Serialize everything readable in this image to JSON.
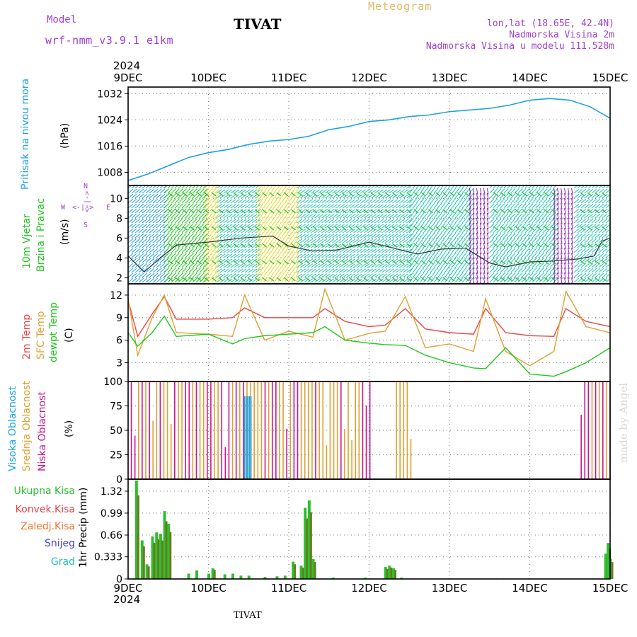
{
  "header": {
    "model_label": "Model",
    "model_name": "wrf-nmm_v3.9.1  e1km",
    "station": "TIVAT",
    "meteogram": "Meteogram",
    "lonlat": "lon,lat (18.65E, 42.4N)",
    "elevation": "Nadmorska Visina 2m",
    "model_elevation": "Nadmorska Visina u modelu 111.528m"
  },
  "footer": {
    "station": "TIVAT",
    "watermark": "made by Angel"
  },
  "time_axis": {
    "year": "2024",
    "labels": [
      "9DEC",
      "10DEC",
      "11DEC",
      "12DEC",
      "13DEC",
      "14DEC",
      "15DEC"
    ]
  },
  "colors": {
    "pressure": "#1ea0e6",
    "temp2m": "#e84545",
    "sfc_temp": "#e0a030",
    "dewpt": "#1ec81e",
    "high_cloud": "#1ea0e6",
    "mid_cloud": "#e0a030",
    "low_cloud": "#c8148c",
    "total_precip": "#2ec02e",
    "conv_precip": "#e84545",
    "frozen_precip": "#f07830",
    "snow": "#4040e0",
    "graupel": "#20c0b0",
    "model_purple": "#a040d0",
    "meteogram_gold": "#e0b860"
  },
  "panels": {
    "pressure": {
      "ylabel": "Pritisak na nivou mora",
      "unit": "(hPa)",
      "yticks": [
        "1008",
        "1016",
        "1024",
        "1032"
      ]
    },
    "wind": {
      "ylabel_1": "10m Vjetar",
      "ylabel_2": "Brzina i Pravac",
      "unit": "(m/s)",
      "yticks": [
        "2",
        "4",
        "6",
        "8",
        "10"
      ],
      "compass_n": "N",
      "compass_s": "S",
      "compass_w": "W",
      "compass_e": "E",
      "compass_cross": "<-|->"
    },
    "temperature": {
      "ylabel_1": "2m Temp",
      "ylabel_2": "SFC Temp",
      "ylabel_3": "dewpt Temp",
      "unit": "(C)",
      "yticks": [
        "3",
        "6",
        "9",
        "12"
      ]
    },
    "cloud": {
      "ylabel_1": "Visoka Oblacnost",
      "ylabel_2": "Srednja Oblacnost",
      "ylabel_3": "Niska Oblacnost",
      "unit": "(%)",
      "yticks": [
        "0",
        "25",
        "50",
        "75",
        "100"
      ]
    },
    "precip": {
      "legend": [
        "Ukupna Kisa",
        "Konvek.Kisa",
        "Zaledj.Kisa",
        "Snijeg",
        "Grad"
      ],
      "ylabel": "1hr Precip (mm)",
      "yticks": [
        "0",
        "0.333",
        "0.66",
        "0.99",
        "1.32"
      ]
    }
  },
  "chart_data": [
    {
      "type": "line",
      "panel": "pressure",
      "x_unit": "days since 9DEC 00Z",
      "ylim": [
        1004,
        1034
      ],
      "series": [
        {
          "name": "Pritisak na nivou mora",
          "x": [
            0,
            0.25,
            0.5,
            0.75,
            1.0,
            1.25,
            1.5,
            1.75,
            2.0,
            2.25,
            2.5,
            2.75,
            3.0,
            3.25,
            3.5,
            3.75,
            4.0,
            4.25,
            4.5,
            4.75,
            5.0,
            5.25,
            5.5,
            5.75,
            6.0
          ],
          "values": [
            1005.5,
            1007.5,
            1010,
            1012.5,
            1014,
            1015,
            1016.5,
            1017.5,
            1018,
            1019,
            1021,
            1022,
            1023.5,
            1024,
            1025,
            1025.5,
            1026.5,
            1027,
            1027.5,
            1028.5,
            1030,
            1030.5,
            1030,
            1028,
            1024.5
          ]
        }
      ]
    },
    {
      "type": "line",
      "panel": "wind",
      "x_unit": "days since 9DEC 00Z",
      "ylim": [
        1.4,
        11.3
      ],
      "series": [
        {
          "name": "10m wind speed",
          "x": [
            0,
            0.2,
            0.4,
            0.6,
            1.0,
            1.4,
            1.8,
            2.0,
            2.3,
            2.6,
            3.0,
            3.3,
            3.6,
            3.9,
            4.2,
            4.5,
            4.7,
            5.0,
            5.3,
            5.6,
            5.8,
            5.9,
            6.0
          ],
          "values": [
            4.2,
            2.6,
            4.0,
            5.3,
            5.6,
            6.0,
            6.2,
            5.2,
            4.7,
            4.8,
            5.6,
            5.0,
            4.4,
            4.9,
            5.0,
            3.5,
            3.1,
            3.6,
            3.7,
            3.9,
            4.2,
            5.7,
            6.0
          ]
        }
      ]
    },
    {
      "type": "line",
      "panel": "temperature",
      "x_unit": "days since 9DEC 00Z",
      "ylim": [
        0.5,
        13.5
      ],
      "series": [
        {
          "name": "2m Temp",
          "x": [
            0,
            0.12,
            0.3,
            0.45,
            0.6,
            1.0,
            1.3,
            1.45,
            1.7,
            2.0,
            2.3,
            2.45,
            2.7,
            3.0,
            3.2,
            3.45,
            3.7,
            4.0,
            4.3,
            4.45,
            4.7,
            5.0,
            5.3,
            5.45,
            5.7,
            6.0
          ],
          "values": [
            11.3,
            6.5,
            9.5,
            11.8,
            8.8,
            8.8,
            9.0,
            10.3,
            9.0,
            9.0,
            9.0,
            10.2,
            8.5,
            7.8,
            8.0,
            10.2,
            7.5,
            7.0,
            6.8,
            10.2,
            7.0,
            6.6,
            6.5,
            10.2,
            8.5,
            7.8
          ]
        }
      ]
    },
    {
      "type": "bar",
      "panel": "cloud",
      "x_unit": "days since 9DEC 00Z",
      "ylim": [
        0,
        100
      ],
      "note_series": [
        "Visoka Oblacnost",
        "Srednja Oblacnost",
        "Niska Oblacnost"
      ]
    },
    {
      "type": "bar",
      "panel": "precip",
      "x_unit": "days since 9DEC 00Z",
      "ylim": [
        0,
        1.5
      ],
      "series": [
        {
          "name": "Ukupna Kisa",
          "x": [
            0.1,
            0.17,
            0.23,
            0.3,
            0.35,
            0.4,
            0.45,
            0.5,
            0.75,
            0.85,
            1.0,
            1.05,
            1.2,
            1.3,
            1.4,
            1.5,
            1.7,
            1.85,
            1.95,
            2.05,
            2.15,
            2.2,
            2.25,
            2.3,
            2.55,
            2.95,
            3.2,
            3.25,
            3.3,
            3.4,
            5.94,
            5.97,
            6.0
          ],
          "values": [
            1.48,
            0.58,
            0.22,
            0.64,
            0.7,
            0.68,
            1.02,
            0.83,
            0.08,
            0.13,
            0.08,
            0.16,
            0.07,
            0.08,
            0.05,
            0.05,
            0.03,
            0.04,
            0.05,
            0.26,
            0.2,
            1.07,
            1.18,
            0.3,
            0.02,
            0.02,
            0.18,
            0.2,
            0.16,
            0.02,
            0.38,
            0.54,
            0.3
          ]
        }
      ]
    }
  ]
}
